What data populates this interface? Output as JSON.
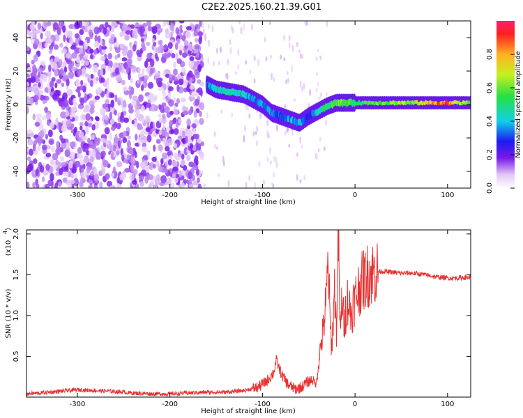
{
  "title": "C2E2.2025.160.21.39.G01",
  "chart_data": [
    {
      "type": "heatmap",
      "xlabel": "Height of straight line (km)",
      "ylabel": "Frequency (Hz)",
      "xlim": [
        -355,
        125
      ],
      "ylim": [
        -50,
        50
      ],
      "x_ticks": [
        -300,
        -200,
        -100,
        0,
        100
      ],
      "x_tick_labels": [
        "-300",
        "-200",
        "-100",
        "0",
        "100"
      ],
      "y_ticks": [
        -40,
        -20,
        0,
        20,
        40
      ],
      "y_tick_labels": [
        "-40",
        "-20",
        "0",
        "20",
        "40"
      ],
      "colorbar": {
        "label": "Normalized spectral amplitude",
        "range": [
          0,
          1
        ],
        "ticks": [
          0.0,
          0.2,
          0.4,
          0.6,
          0.8
        ],
        "tick_labels": [
          "0.0",
          "0.2",
          "0.4",
          "0.6",
          "0.8"
        ],
        "colormap": "white-purple-blue-cyan-green-yellow-orange-red"
      },
      "noise_region": {
        "x_from": -355,
        "x_to": -165,
        "amplitude": 0.15
      },
      "faint_scatter": {
        "x_from": -165,
        "x_to": -30,
        "amplitude": 0.05
      },
      "signal_track": {
        "x": [
          -160,
          -150,
          -140,
          -130,
          -120,
          -110,
          -100,
          -90,
          -80,
          -70,
          -60,
          -50,
          -40,
          -30,
          -20,
          -10,
          0,
          20,
          40,
          60,
          80,
          100,
          120
        ],
        "y": [
          12,
          9,
          8,
          7,
          6,
          3,
          0,
          -5,
          -7,
          -9,
          -11,
          -7,
          -4,
          -1,
          1,
          1,
          1,
          1,
          1,
          1,
          1,
          1,
          1
        ],
        "amplitude": [
          0.3,
          0.4,
          0.45,
          0.45,
          0.4,
          0.35,
          0.35,
          0.35,
          0.3,
          0.35,
          0.4,
          0.25,
          0.45,
          0.5,
          0.6,
          0.55,
          0.5,
          0.55,
          0.6,
          0.6,
          0.75,
          0.85,
          0.6
        ]
      }
    },
    {
      "type": "line",
      "xlabel": "Height of straight line (km)",
      "ylabel": "SNR (10 * v/v)",
      "scale_label": "(x10",
      "scale_exponent": "4",
      "xlim": [
        -355,
        125
      ],
      "ylim": [
        0,
        2.05
      ],
      "x_ticks": [
        -300,
        -200,
        -100,
        0,
        100
      ],
      "x_tick_labels": [
        "-300",
        "-200",
        "-100",
        "0",
        "100"
      ],
      "y_ticks": [
        0.5,
        1.0,
        1.5,
        2.0
      ],
      "y_tick_labels": [
        "0.5",
        "1.0",
        "1.5",
        "2.0"
      ],
      "color": "#e8302f",
      "series": [
        {
          "x": [
            -355,
            -340,
            -320,
            -300,
            -280,
            -260,
            -240,
            -220,
            -200,
            -180,
            -160,
            -140,
            -120,
            -105,
            -95,
            -88,
            -85,
            -82,
            -78,
            -72,
            -65,
            -58,
            -52,
            -46,
            -42,
            -38,
            -34,
            -31,
            -29,
            -27,
            -25,
            -22,
            -20,
            -18,
            -16,
            -14,
            -12,
            -10,
            -8,
            -6,
            -4,
            -2,
            0,
            3,
            6,
            10,
            14,
            18,
            22,
            26,
            30,
            40,
            50,
            60,
            70,
            80,
            90,
            100,
            110,
            125
          ],
          "y": [
            0.04,
            0.05,
            0.07,
            0.09,
            0.08,
            0.07,
            0.05,
            0.04,
            0.04,
            0.05,
            0.06,
            0.06,
            0.08,
            0.12,
            0.2,
            0.3,
            0.45,
            0.35,
            0.25,
            0.15,
            0.1,
            0.12,
            0.18,
            0.22,
            0.15,
            0.55,
            0.85,
            1.2,
            1.7,
            0.9,
            0.6,
            1.35,
            0.8,
            2.05,
            0.7,
            1.25,
            0.9,
            1.05,
            1.2,
            1.1,
            1.0,
            1.15,
            1.2,
            1.3,
            1.38,
            1.45,
            1.5,
            1.52,
            1.53,
            1.54,
            1.54,
            1.53,
            1.52,
            1.52,
            1.51,
            1.49,
            1.47,
            1.46,
            1.46,
            1.47
          ]
        }
      ]
    }
  ]
}
